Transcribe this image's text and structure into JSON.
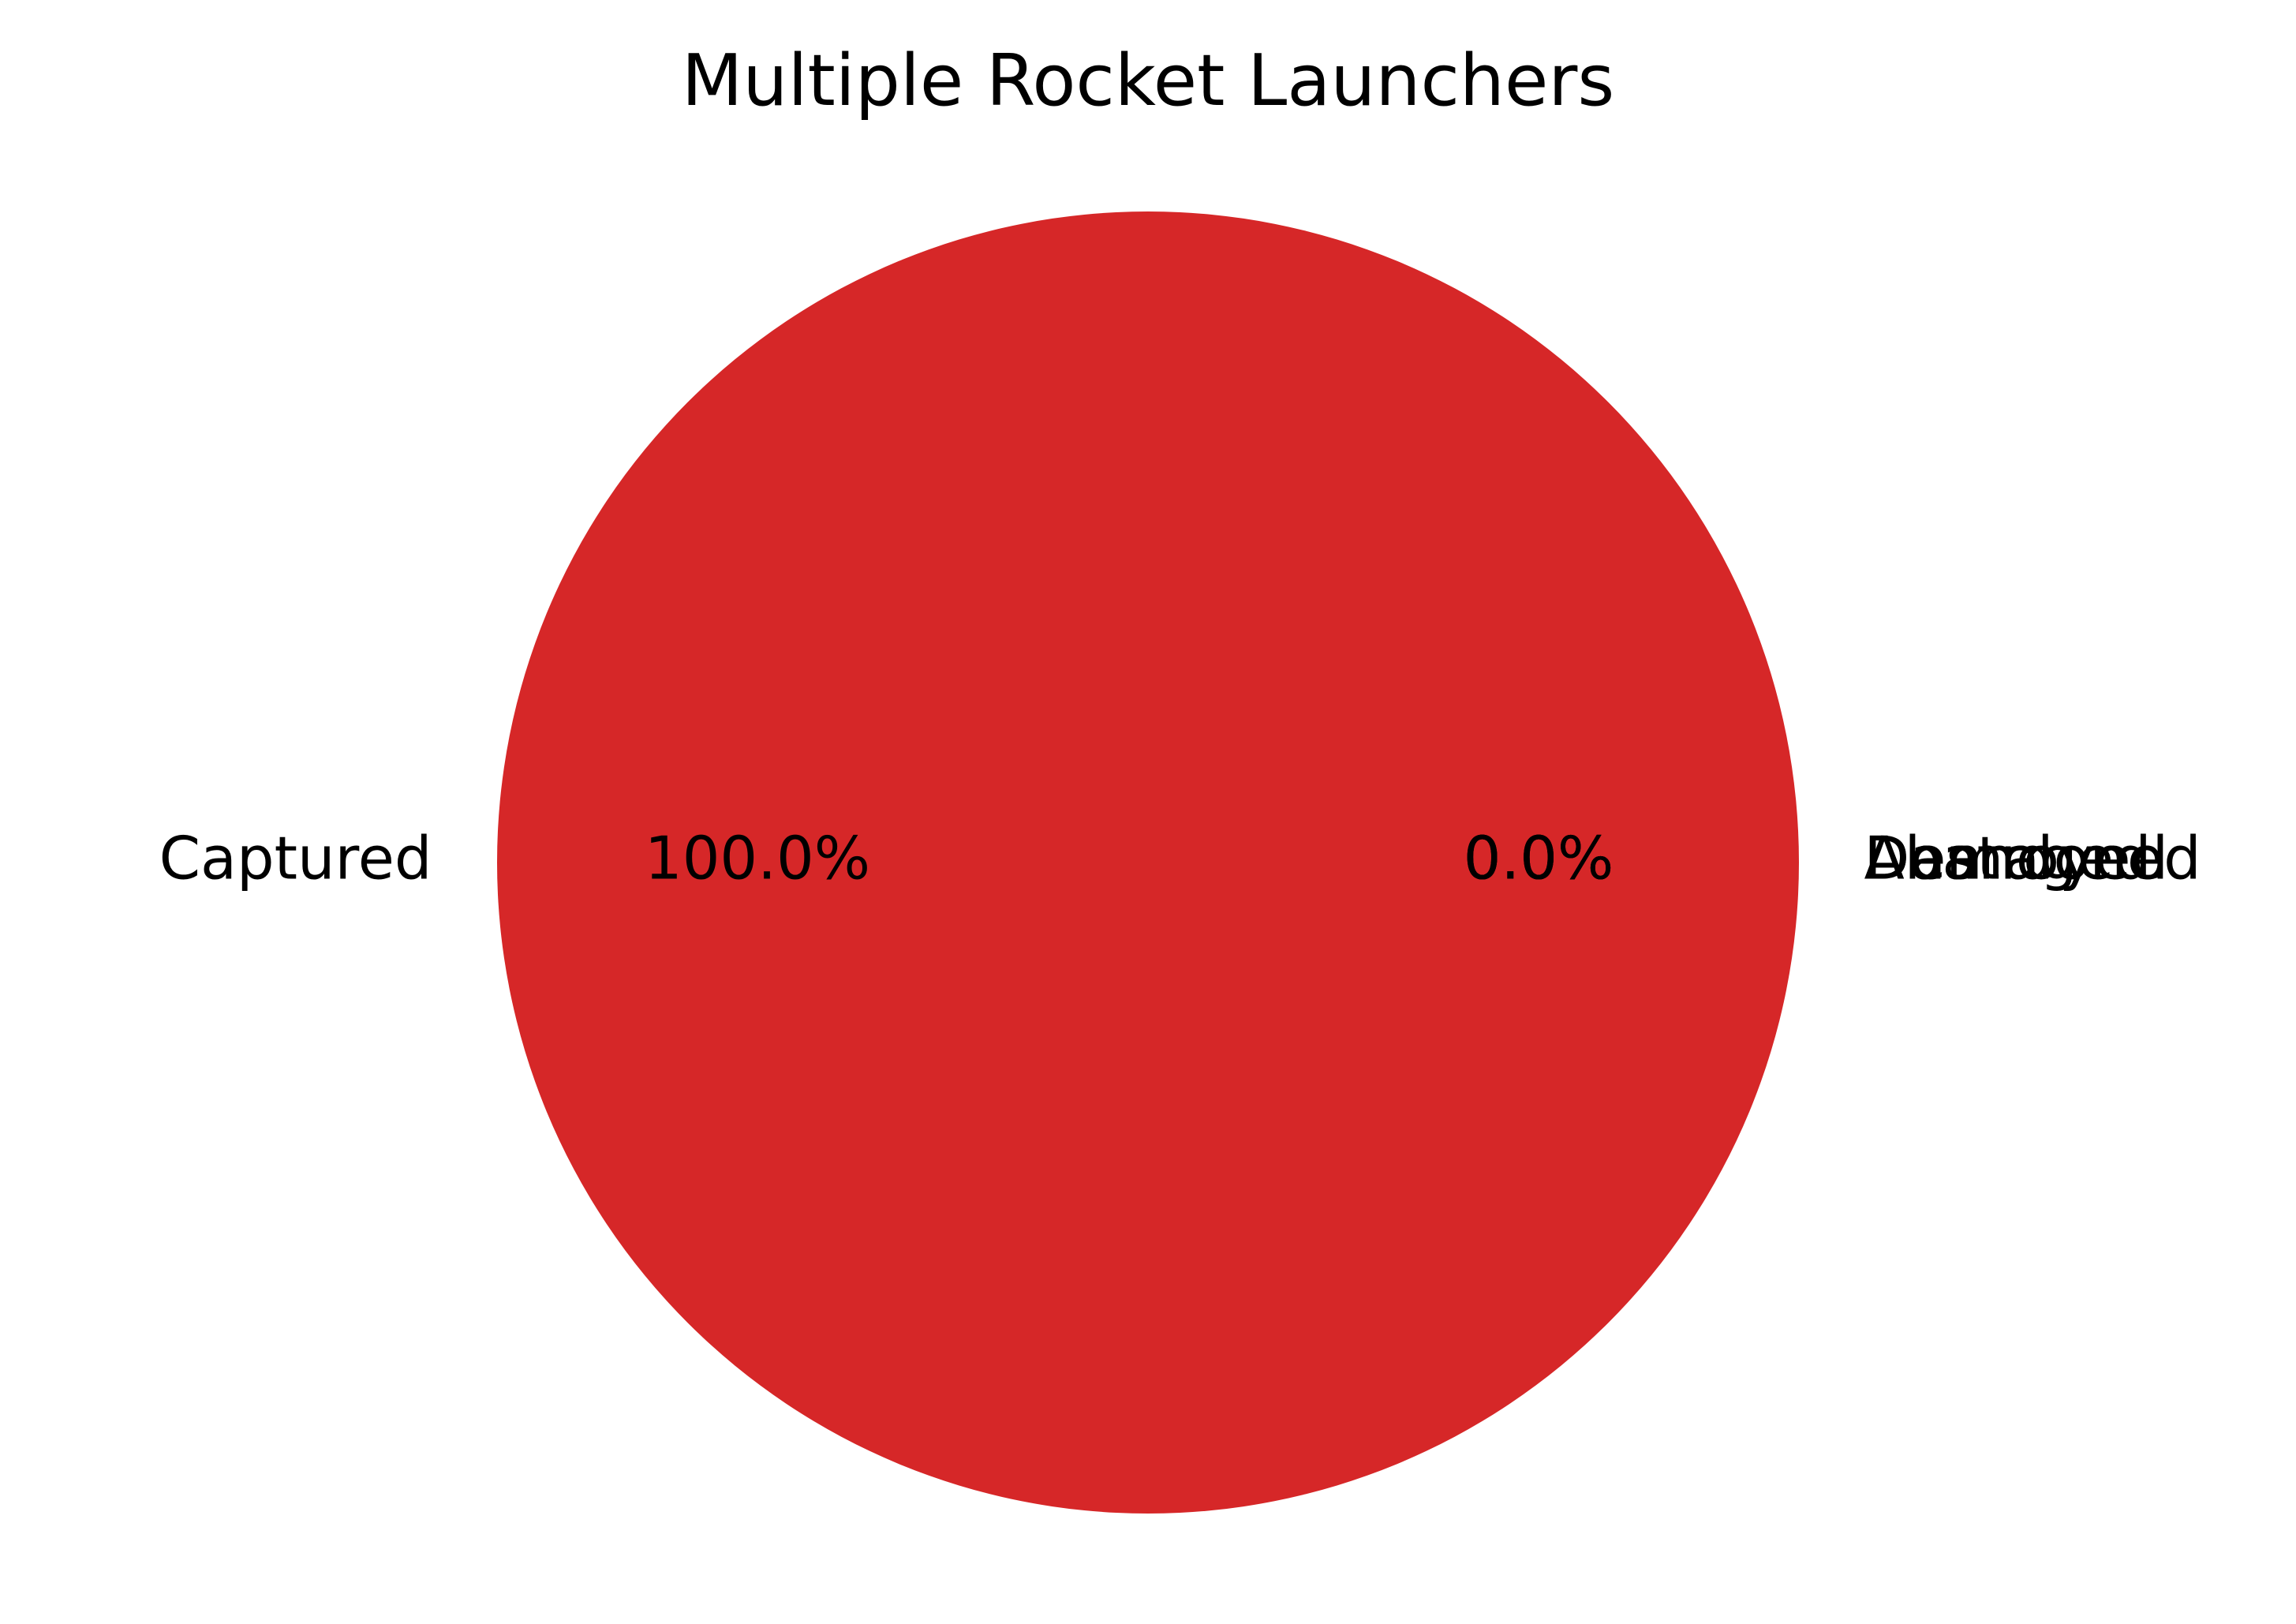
{
  "chart_data": {
    "type": "pie",
    "title": "Multiple Rocket Launchers",
    "categories": [
      "Captured",
      "Destroyed",
      "Abandoned",
      "Damaged"
    ],
    "values": [
      1,
      0,
      0,
      0
    ],
    "percent_labels": [
      "100.0%",
      "0.0%",
      "0.0%",
      "0.0%"
    ],
    "colors": [
      "#d62728",
      "#d62728",
      "#d62728",
      "#d62728"
    ],
    "start_angle_deg": 0,
    "direction": "counterclockwise",
    "legend": false
  }
}
